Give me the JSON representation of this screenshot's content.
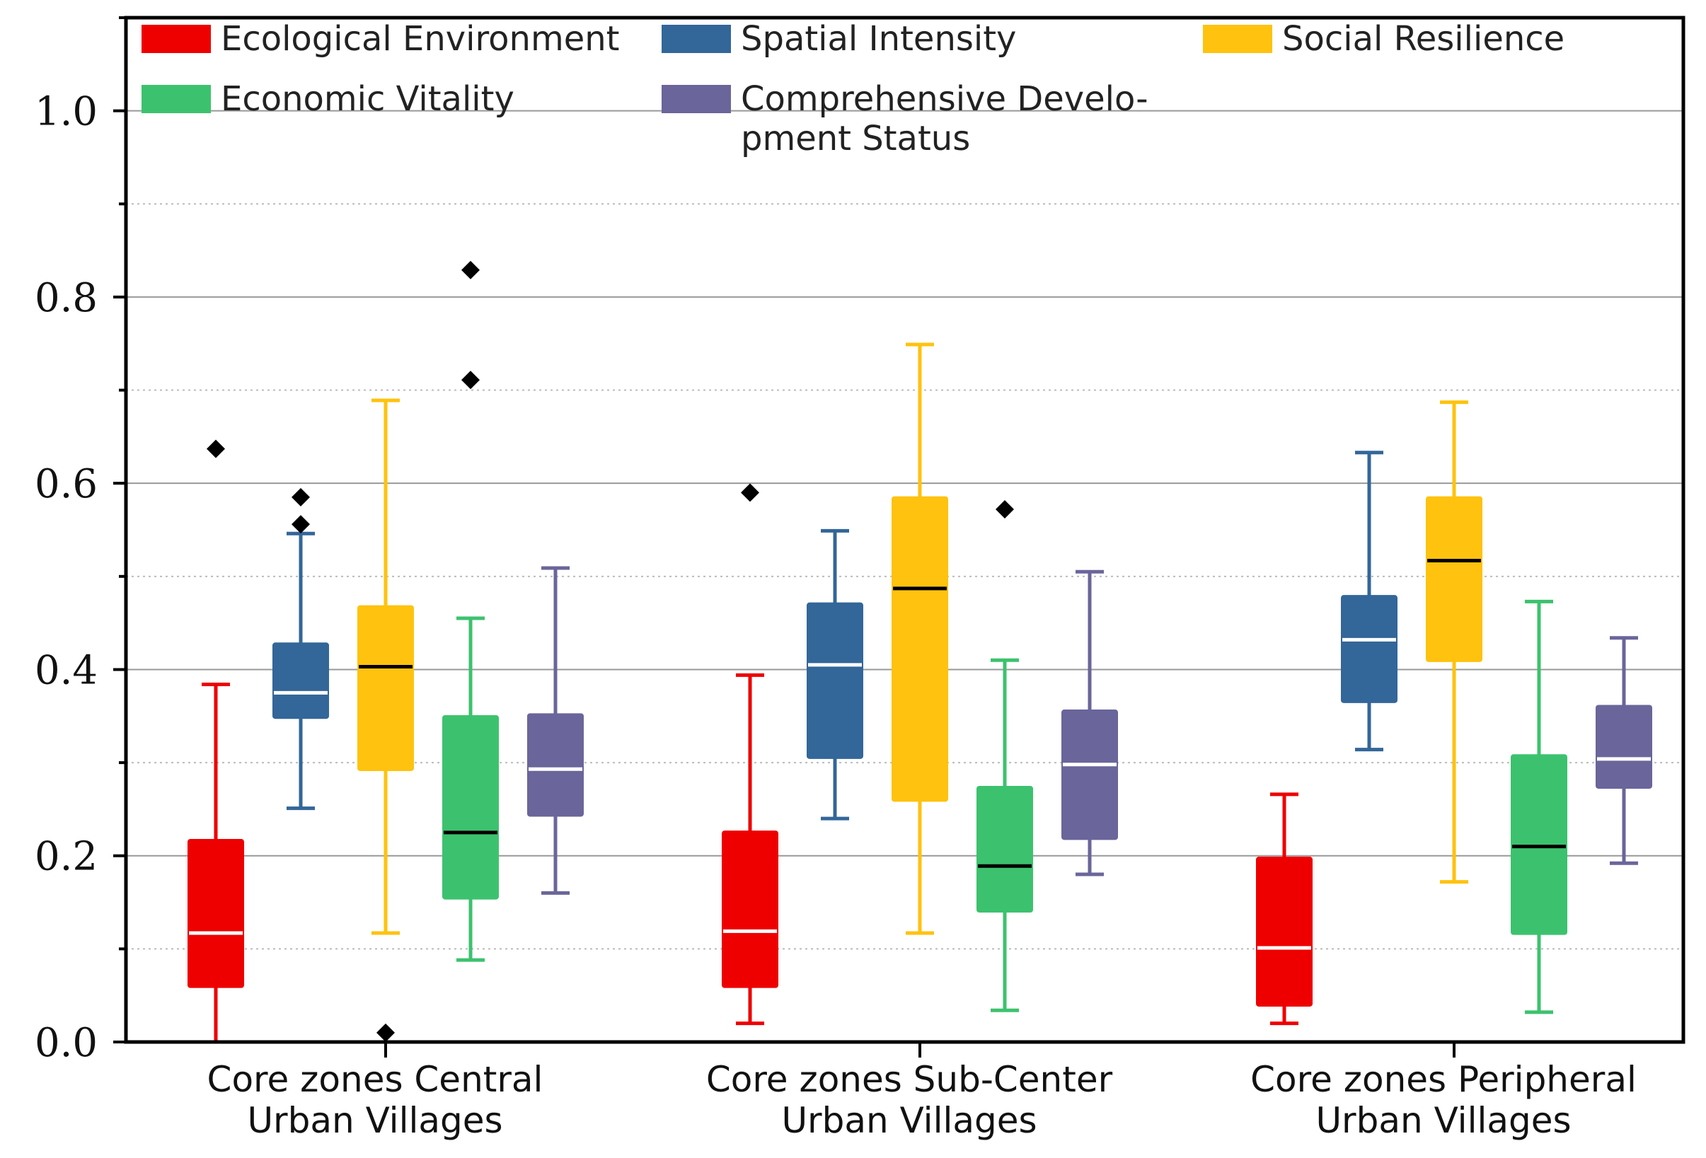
{
  "chart_data": {
    "type": "boxplot",
    "title": "",
    "xlabel": "",
    "ylabel": "",
    "ylim": [
      0,
      1.1
    ],
    "yticks": [
      0.0,
      0.2,
      0.4,
      0.6,
      0.8,
      1.0
    ],
    "ytick_labels": [
      "0.0",
      "0.2",
      "0.4",
      "0.6",
      "0.8",
      "1.0"
    ],
    "grid": true,
    "legend_position": "top",
    "categories": [
      [
        "Core zones Central",
        "Urban Villages"
      ],
      [
        "Core zones Sub-Center",
        "Urban Villages"
      ],
      [
        "Core zones Peripheral",
        "Urban Villages"
      ]
    ],
    "series": [
      {
        "name": "Ecological Environment",
        "legend_lines": [
          "Ecological Environment"
        ],
        "color": "#ee0000",
        "median_color": "#ffffff",
        "boxes": [
          {
            "low": 0.0,
            "q1": 0.058,
            "median": 0.117,
            "q3": 0.218,
            "high": 0.384,
            "outliers": [
              0.637
            ]
          },
          {
            "low": 0.02,
            "q1": 0.058,
            "median": 0.119,
            "q3": 0.227,
            "high": 0.394,
            "outliers": [
              0.59
            ]
          },
          {
            "low": 0.02,
            "q1": 0.038,
            "median": 0.101,
            "q3": 0.199,
            "high": 0.266,
            "outliers": []
          }
        ]
      },
      {
        "name": "Spatial Intensity",
        "legend_lines": [
          "Spatial Intensity"
        ],
        "color": "#336699",
        "median_color": "#ffffff",
        "boxes": [
          {
            "low": 0.251,
            "q1": 0.347,
            "median": 0.375,
            "q3": 0.429,
            "high": 0.546,
            "outliers": [
              0.556,
              0.585
            ]
          },
          {
            "low": 0.24,
            "q1": 0.304,
            "median": 0.405,
            "q3": 0.472,
            "high": 0.549,
            "outliers": []
          },
          {
            "low": 0.314,
            "q1": 0.364,
            "median": 0.432,
            "q3": 0.48,
            "high": 0.633,
            "outliers": []
          }
        ]
      },
      {
        "name": "Social Resilience",
        "legend_lines": [
          "Social Resilience"
        ],
        "color": "#ffc20e",
        "median_color": "#000000",
        "boxes": [
          {
            "low": 0.117,
            "q1": 0.291,
            "median": 0.403,
            "q3": 0.469,
            "high": 0.689,
            "outliers": [
              0.01
            ]
          },
          {
            "low": 0.117,
            "q1": 0.258,
            "median": 0.487,
            "q3": 0.586,
            "high": 0.749,
            "outliers": []
          },
          {
            "low": 0.172,
            "q1": 0.408,
            "median": 0.517,
            "q3": 0.586,
            "high": 0.687,
            "outliers": []
          }
        ]
      },
      {
        "name": "Economic Vitality",
        "legend_lines": [
          "Economic Vitality"
        ],
        "color": "#3cc26e",
        "median_color": "#000000",
        "boxes": [
          {
            "low": 0.088,
            "q1": 0.153,
            "median": 0.225,
            "q3": 0.351,
            "high": 0.455,
            "outliers": [
              0.711,
              0.829
            ]
          },
          {
            "low": 0.034,
            "q1": 0.139,
            "median": 0.189,
            "q3": 0.275,
            "high": 0.41,
            "outliers": [
              0.572
            ]
          },
          {
            "low": 0.032,
            "q1": 0.115,
            "median": 0.21,
            "q3": 0.309,
            "high": 0.473,
            "outliers": []
          }
        ]
      },
      {
        "name": "Comprehensive Development Status",
        "legend_lines": [
          "Comprehensive Develo-",
          "pment Status"
        ],
        "color": "#6a659a",
        "median_color": "#ffffff",
        "boxes": [
          {
            "low": 0.16,
            "q1": 0.242,
            "median": 0.293,
            "q3": 0.353,
            "high": 0.509,
            "outliers": []
          },
          {
            "low": 0.18,
            "q1": 0.217,
            "median": 0.298,
            "q3": 0.357,
            "high": 0.505,
            "outliers": []
          },
          {
            "low": 0.192,
            "q1": 0.272,
            "median": 0.304,
            "q3": 0.362,
            "high": 0.434,
            "outliers": []
          }
        ]
      }
    ]
  }
}
